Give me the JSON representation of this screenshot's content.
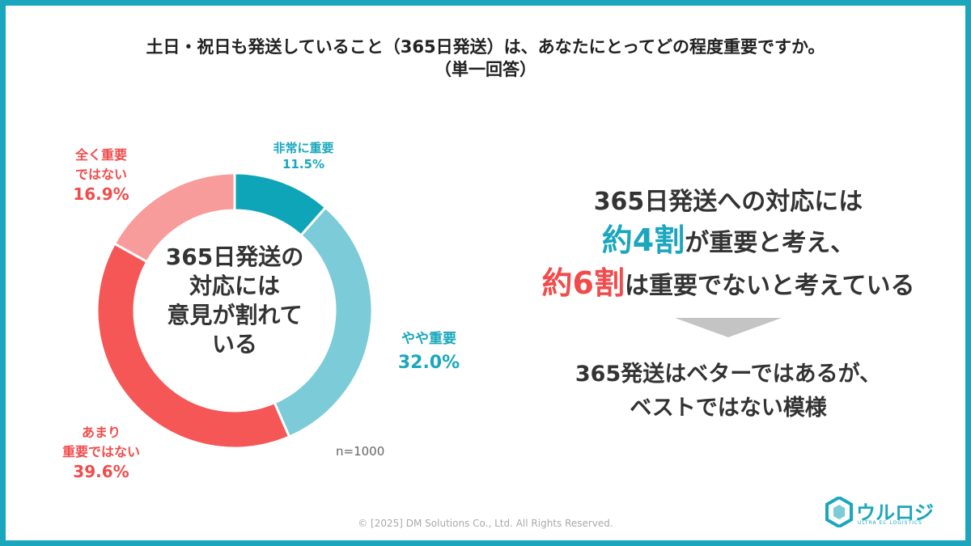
{
  "title": {
    "line1": "土日・祝日も発送していること（365日発送）は、あなたにとってどの程度重要ですか。",
    "line2": "（単一回答）"
  },
  "chart_data": {
    "type": "pie",
    "categories": [
      "非常に重要",
      "やや重要",
      "あまり重要ではない",
      "全く重要ではない"
    ],
    "values": [
      11.5,
      32.0,
      39.6,
      16.9
    ],
    "value_labels": [
      "11.5%",
      "32.0%",
      "39.6%",
      "16.9%"
    ],
    "colors": [
      "#0ea5b8",
      "#7ccbd8",
      "#f55757",
      "#f79b9b"
    ],
    "label_colors": [
      "#1aa7bd",
      "#1aa7bd",
      "#f24b4b",
      "#f24b4b"
    ],
    "donut": true,
    "center_text": [
      "365日発送の",
      "対応には",
      "意見が割れて",
      "いる"
    ],
    "note": "n=1000"
  },
  "labels": {
    "very": {
      "name": "非常に重要",
      "pct": "11.5%"
    },
    "some": {
      "name": "やや重要",
      "pct": "32.0%"
    },
    "not_very": {
      "name1": "あまり",
      "name2": "重要ではない",
      "pct": "39.6%"
    },
    "not_at_all": {
      "name1": "全く重要",
      "name2": "ではない",
      "pct": "16.9%"
    }
  },
  "summary": {
    "line1": "365日発送への対応には",
    "line2_emph": "約4割",
    "line2_rest": "が重要と考え、",
    "line3_emph": "約6割",
    "line3_rest": "は重要でないと考えている",
    "conclusion1": "365発送はベターではあるが、",
    "conclusion2": "ベストではない模様"
  },
  "footer": {
    "copyright": "© [2025] DM Solutions Co., Ltd. All Rights Reserved.",
    "logo_text": "ウルロジ",
    "logo_sub": "ULTRA EC LOGISTICS"
  },
  "colors": {
    "frame": "#1aa7bd",
    "teal": "#1aa7bd",
    "red": "#f24b4b",
    "arrow": "#c4c4c4"
  }
}
